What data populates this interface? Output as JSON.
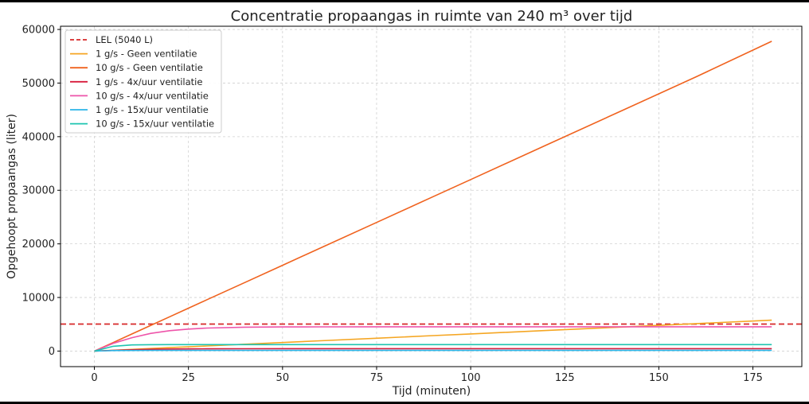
{
  "chart_data": {
    "type": "line",
    "title": "Concentratie propaangas in ruimte van 240 m³ over tijd",
    "xlabel": "Tijd (minuten)",
    "ylabel": "Opgehoopt propaangas (liter)",
    "xlim": [
      -9,
      188
    ],
    "ylim": [
      -2900,
      60600
    ],
    "xticks": [
      0,
      25,
      50,
      75,
      100,
      125,
      150,
      175
    ],
    "yticks": [
      0,
      10000,
      20000,
      30000,
      40000,
      50000,
      60000
    ],
    "grid": true,
    "legend_position": "top-left",
    "lel": {
      "name": "LEL (5040 L)",
      "value": 5040,
      "color": "#d62728"
    },
    "x": [
      0,
      5,
      10,
      15,
      20,
      25,
      30,
      40,
      50,
      60,
      75,
      90,
      100,
      120,
      140,
      160,
      180
    ],
    "series": [
      {
        "name": "1 g/s - Geen ventilatie",
        "color": "#f5a623",
        "values": [
          0,
          160,
          320,
          480,
          640,
          800,
          960,
          1280,
          1600,
          1920,
          2400,
          2880,
          3200,
          3840,
          4480,
          5120,
          5760
        ]
      },
      {
        "name": "10 g/s - Geen ventilatie",
        "color": "#f0621e",
        "values": [
          0,
          1600,
          3200,
          4800,
          6400,
          8000,
          9600,
          12800,
          16000,
          19200,
          24000,
          28800,
          32000,
          38400,
          44800,
          51200,
          57800
        ]
      },
      {
        "name": "1 g/s - 4x/uur ventilatie",
        "color": "#d81b3c",
        "values": [
          0,
          140,
          250,
          330,
          380,
          410,
          430,
          445,
          450,
          450,
          450,
          450,
          450,
          450,
          450,
          450,
          450
        ]
      },
      {
        "name": "10 g/s - 4x/uur ventilatie",
        "color": "#ee55aa",
        "values": [
          0,
          1450,
          2500,
          3300,
          3800,
          4100,
          4300,
          4460,
          4500,
          4520,
          4530,
          4530,
          4530,
          4530,
          4530,
          4530,
          4530
        ]
      },
      {
        "name": "1 g/s - 15x/uur ventilatie",
        "color": "#2bb5e8",
        "values": [
          0,
          90,
          115,
          120,
          120,
          120,
          120,
          120,
          120,
          120,
          120,
          120,
          120,
          120,
          120,
          120,
          120
        ]
      },
      {
        "name": "10 g/s - 15x/uur ventilatie",
        "color": "#1ec4b0",
        "values": [
          0,
          900,
          1150,
          1200,
          1210,
          1210,
          1210,
          1210,
          1210,
          1210,
          1210,
          1210,
          1210,
          1210,
          1210,
          1210,
          1210
        ]
      }
    ]
  }
}
